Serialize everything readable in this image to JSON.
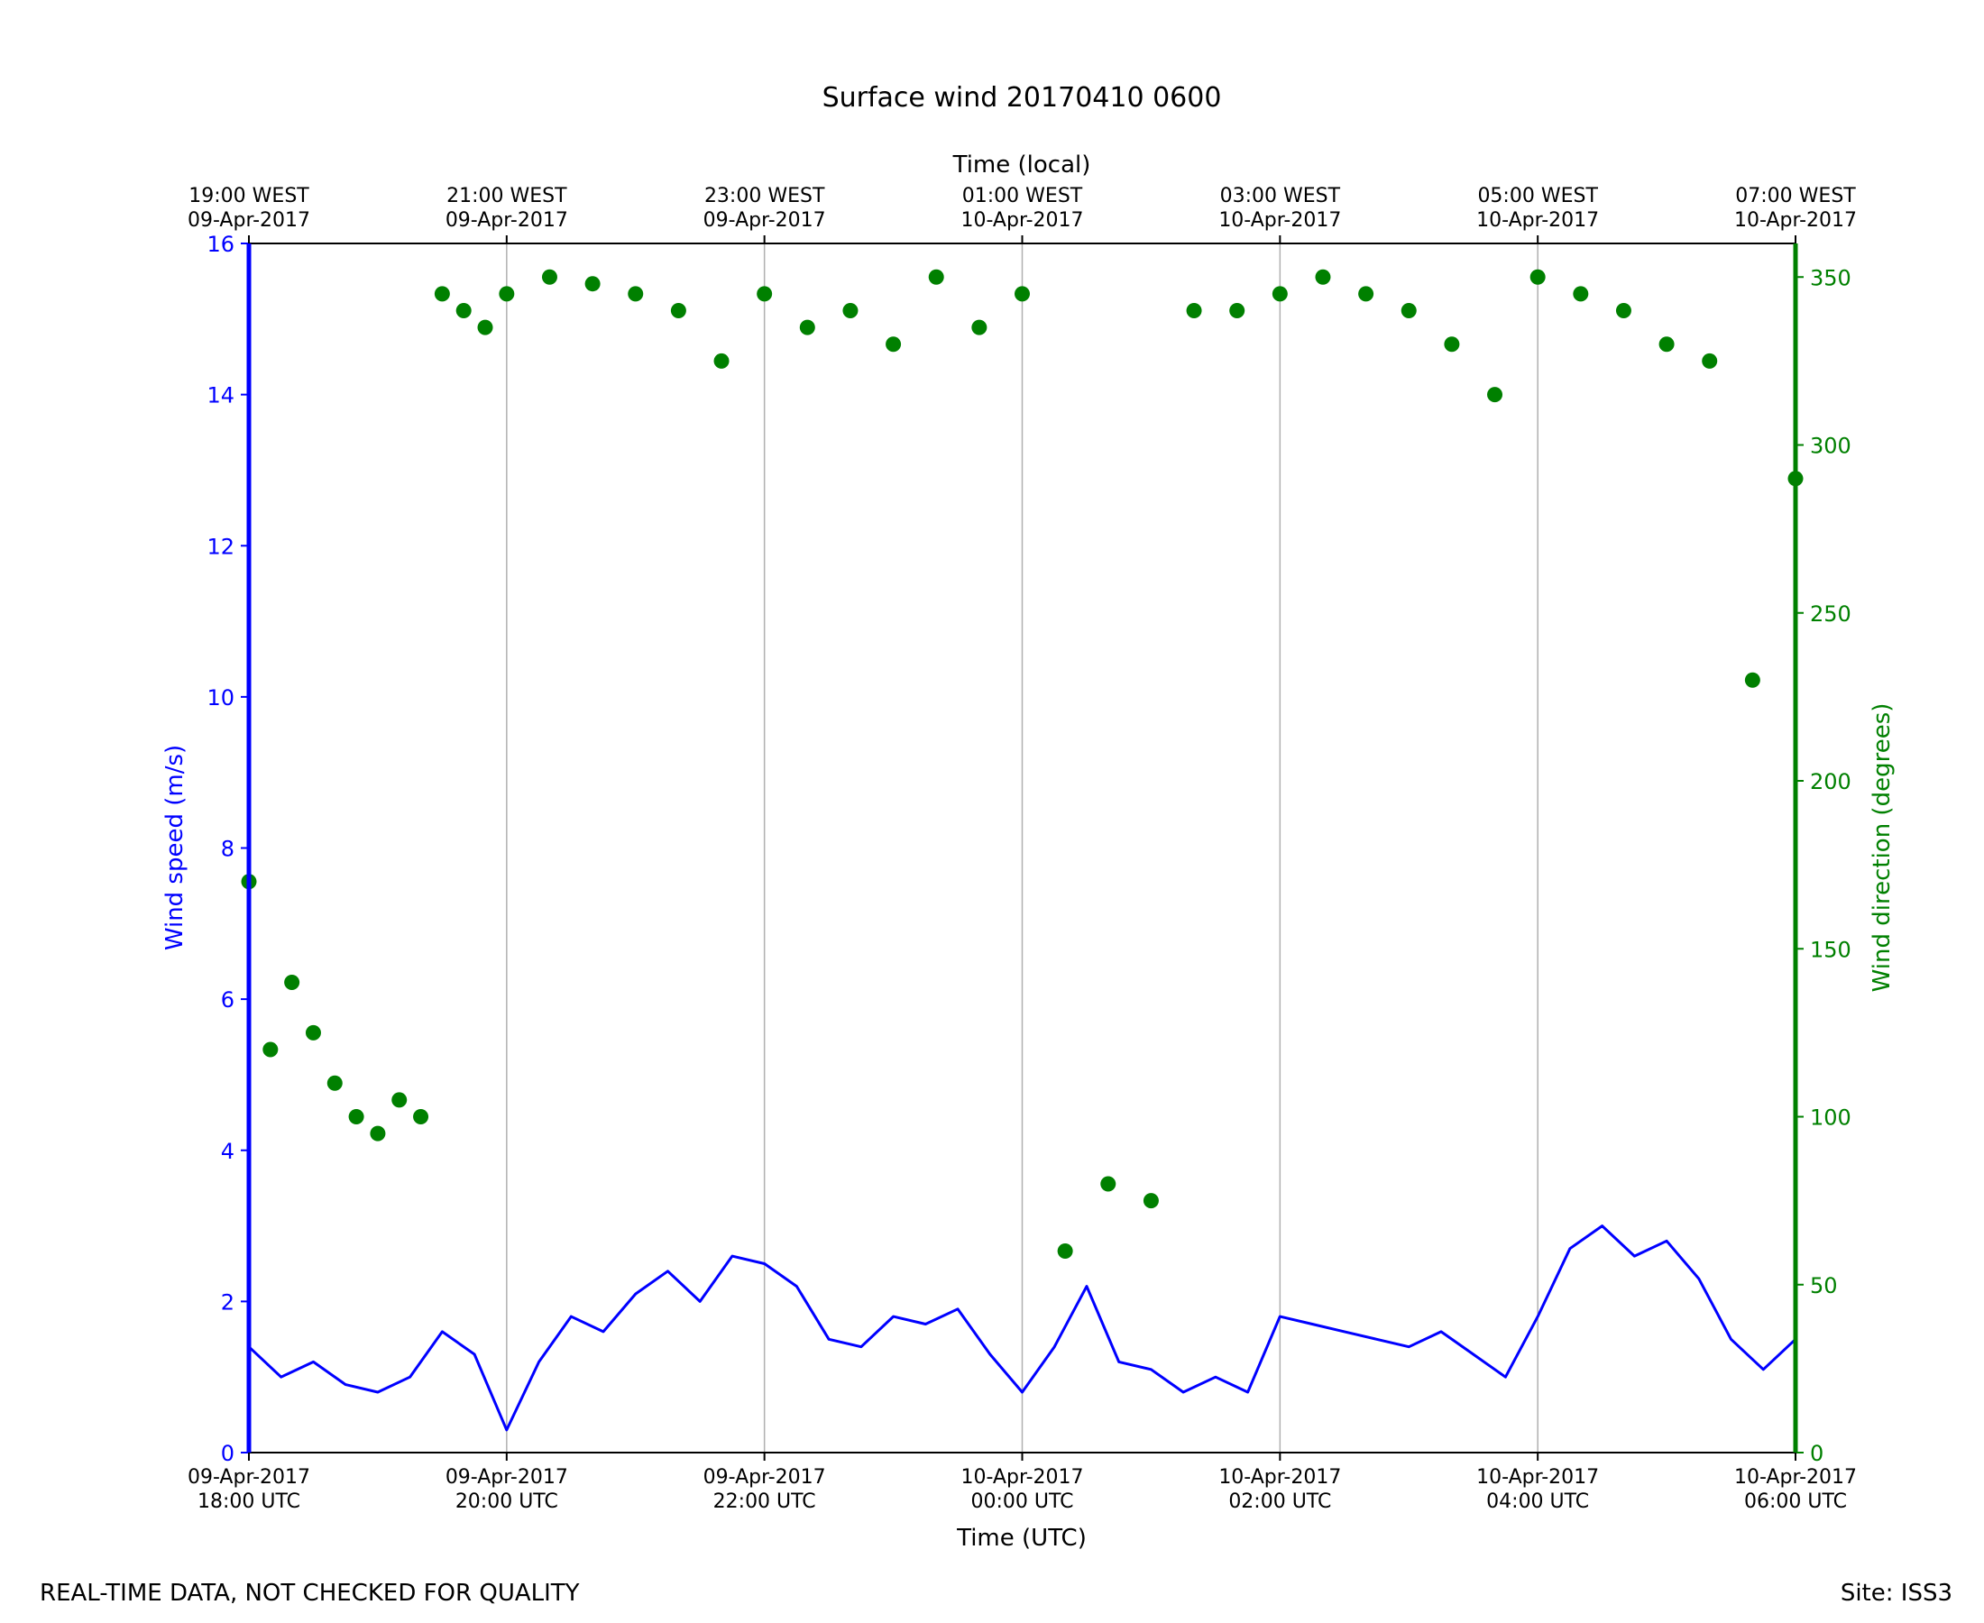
{
  "chart_data": {
    "type": "line",
    "title": "Surface wind 20170410 0600",
    "x_top_label": "Time (local)",
    "xlabel": "Time (UTC)",
    "ylabel_left": "Wind speed (m/s)",
    "ylabel_right": "Wind direction (degrees)",
    "xlim": [
      "2017-04-09 18:00",
      "2017-04-10 06:00"
    ],
    "ylim_left": [
      0,
      16
    ],
    "ylim_right": [
      0,
      360
    ],
    "y_ticks_left": [
      0,
      2,
      4,
      6,
      8,
      10,
      12,
      14,
      16
    ],
    "y_ticks_right": [
      0,
      50,
      100,
      150,
      200,
      250,
      300,
      350
    ],
    "grid": "vertical at x ticks",
    "x_ticks": [
      {
        "value": "2017-04-09 18:00",
        "utc": [
          "09-Apr-2017",
          "18:00 UTC"
        ],
        "local": [
          "19:00 WEST",
          "09-Apr-2017"
        ]
      },
      {
        "value": "2017-04-09 20:00",
        "utc": [
          "09-Apr-2017",
          "20:00 UTC"
        ],
        "local": [
          "21:00 WEST",
          "09-Apr-2017"
        ]
      },
      {
        "value": "2017-04-09 22:00",
        "utc": [
          "09-Apr-2017",
          "22:00 UTC"
        ],
        "local": [
          "23:00 WEST",
          "09-Apr-2017"
        ]
      },
      {
        "value": "2017-04-10 00:00",
        "utc": [
          "10-Apr-2017",
          "00:00 UTC"
        ],
        "local": [
          "01:00 WEST",
          "10-Apr-2017"
        ]
      },
      {
        "value": "2017-04-10 02:00",
        "utc": [
          "10-Apr-2017",
          "02:00 UTC"
        ],
        "local": [
          "03:00 WEST",
          "10-Apr-2017"
        ]
      },
      {
        "value": "2017-04-10 04:00",
        "utc": [
          "10-Apr-2017",
          "04:00 UTC"
        ],
        "local": [
          "05:00 WEST",
          "10-Apr-2017"
        ]
      },
      {
        "value": "2017-04-10 06:00",
        "utc": [
          "10-Apr-2017",
          "06:00 UTC"
        ],
        "local": [
          "07:00 WEST",
          "10-Apr-2017"
        ]
      }
    ],
    "series": [
      {
        "name": "Wind speed",
        "axis": "left",
        "color": "#0000ff",
        "style": "line",
        "x": [
          "2017-04-09 18:00",
          "2017-04-09 18:15",
          "2017-04-09 18:30",
          "2017-04-09 18:45",
          "2017-04-09 19:00",
          "2017-04-09 19:15",
          "2017-04-09 19:30",
          "2017-04-09 19:45",
          "2017-04-09 20:00",
          "2017-04-09 20:15",
          "2017-04-09 20:30",
          "2017-04-09 20:45",
          "2017-04-09 21:00",
          "2017-04-09 21:15",
          "2017-04-09 21:30",
          "2017-04-09 21:45",
          "2017-04-09 22:00",
          "2017-04-09 22:15",
          "2017-04-09 22:30",
          "2017-04-09 22:45",
          "2017-04-09 23:00",
          "2017-04-09 23:15",
          "2017-04-09 23:30",
          "2017-04-09 23:45",
          "2017-04-10 00:00",
          "2017-04-10 00:15",
          "2017-04-10 00:30",
          "2017-04-10 00:45",
          "2017-04-10 01:00",
          "2017-04-10 01:15",
          "2017-04-10 01:30",
          "2017-04-10 01:45",
          "2017-04-10 02:00",
          "2017-04-10 02:15",
          "2017-04-10 02:30",
          "2017-04-10 02:45",
          "2017-04-10 03:00",
          "2017-04-10 03:15",
          "2017-04-10 03:30",
          "2017-04-10 03:45",
          "2017-04-10 04:00",
          "2017-04-10 04:15",
          "2017-04-10 04:30",
          "2017-04-10 04:45",
          "2017-04-10 05:00",
          "2017-04-10 05:15",
          "2017-04-10 05:30",
          "2017-04-10 05:45",
          "2017-04-10 06:00"
        ],
        "values": [
          1.4,
          1.0,
          1.2,
          0.9,
          0.8,
          1.0,
          1.6,
          1.3,
          0.3,
          1.2,
          1.8,
          1.6,
          2.1,
          2.4,
          2.0,
          2.6,
          2.5,
          2.2,
          1.5,
          1.4,
          1.8,
          1.7,
          1.9,
          1.3,
          0.8,
          1.4,
          2.2,
          1.2,
          1.1,
          0.8,
          1.0,
          0.8,
          1.8,
          1.7,
          1.6,
          1.5,
          1.4,
          1.6,
          1.3,
          1.0,
          1.8,
          2.7,
          3.0,
          2.6,
          2.8,
          2.3,
          1.5,
          1.1,
          1.5
        ]
      },
      {
        "name": "Wind direction",
        "axis": "right",
        "color": "#008000",
        "style": "markers",
        "x": [
          "2017-04-09 18:00",
          "2017-04-09 18:10",
          "2017-04-09 18:20",
          "2017-04-09 18:30",
          "2017-04-09 18:40",
          "2017-04-09 18:50",
          "2017-04-09 19:00",
          "2017-04-09 19:10",
          "2017-04-09 19:20",
          "2017-04-09 19:30",
          "2017-04-09 19:40",
          "2017-04-09 19:50",
          "2017-04-09 20:00",
          "2017-04-09 20:20",
          "2017-04-09 20:40",
          "2017-04-09 21:00",
          "2017-04-09 21:20",
          "2017-04-09 21:40",
          "2017-04-09 22:00",
          "2017-04-09 22:20",
          "2017-04-09 22:40",
          "2017-04-09 23:00",
          "2017-04-09 23:20",
          "2017-04-09 23:40",
          "2017-04-10 00:00",
          "2017-04-10 00:20",
          "2017-04-10 00:40",
          "2017-04-10 01:00",
          "2017-04-10 01:20",
          "2017-04-10 01:40",
          "2017-04-10 02:00",
          "2017-04-10 02:20",
          "2017-04-10 02:40",
          "2017-04-10 03:00",
          "2017-04-10 03:20",
          "2017-04-10 03:40",
          "2017-04-10 04:00",
          "2017-04-10 04:20",
          "2017-04-10 04:40",
          "2017-04-10 05:00",
          "2017-04-10 05:20",
          "2017-04-10 05:40",
          "2017-04-10 06:00"
        ],
        "values": [
          170,
          120,
          140,
          125,
          110,
          100,
          95,
          105,
          100,
          345,
          340,
          335,
          345,
          350,
          348,
          345,
          340,
          325,
          345,
          335,
          340,
          330,
          350,
          335,
          345,
          60,
          80,
          75,
          340,
          340,
          345,
          350,
          345,
          340,
          330,
          315,
          350,
          345,
          340,
          330,
          325,
          230,
          290
        ]
      }
    ],
    "footer_left": "REAL-TIME DATA, NOT CHECKED FOR QUALITY",
    "footer_right": "Site: ISS3"
  }
}
